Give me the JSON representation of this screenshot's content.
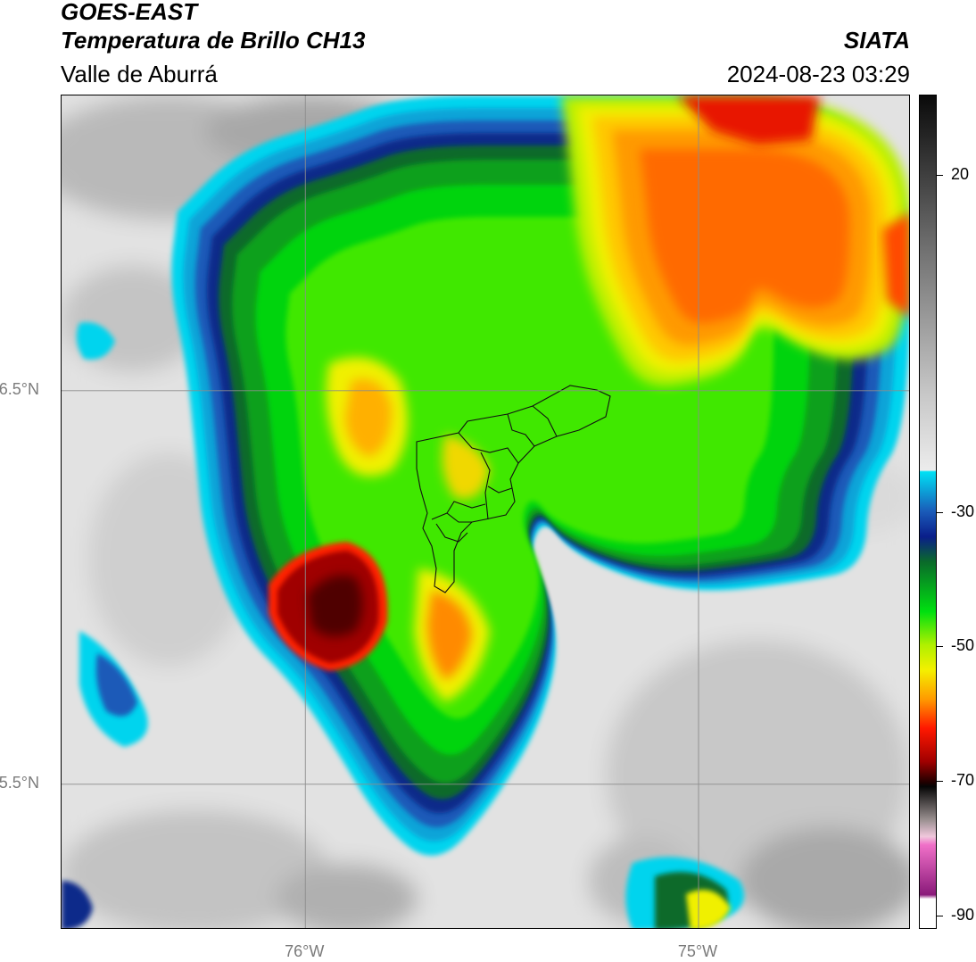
{
  "header": {
    "title_line1": "GOES-EAST",
    "title_line2": "Temperatura de Brillo CH13",
    "subtitle": "Valle de Aburrá",
    "org": "SIATA",
    "timestamp": "2024-08-23 03:29"
  },
  "axes": {
    "lat_ticks": [
      {
        "value": 6.5,
        "label": "6.5°N"
      },
      {
        "value": 5.5,
        "label": "5.5°N"
      }
    ],
    "lon_ticks": [
      {
        "value": -76.0,
        "label": "76°W"
      },
      {
        "value": -75.0,
        "label": "75°W"
      }
    ],
    "lon_range": [
      -76.62,
      -74.46
    ],
    "lat_range": [
      5.13,
      7.25
    ]
  },
  "colorbar": {
    "range": [
      -92,
      32
    ],
    "ticks": [
      {
        "value": 20,
        "label": "20"
      },
      {
        "value": -30,
        "label": "-30"
      },
      {
        "value": -50,
        "label": "-50"
      },
      {
        "value": -70,
        "label": "-70"
      },
      {
        "value": -90,
        "label": "-90"
      }
    ]
  },
  "colors": {
    "warm": "#e4e4e4",
    "cold_edge": "#00d8f0",
    "deep_blue": "#0a2a8a",
    "green": "#00c020",
    "yellow": "#f0f000",
    "orange": "#ff9000",
    "red": "#e01000",
    "dark_red": "#5a0000"
  }
}
